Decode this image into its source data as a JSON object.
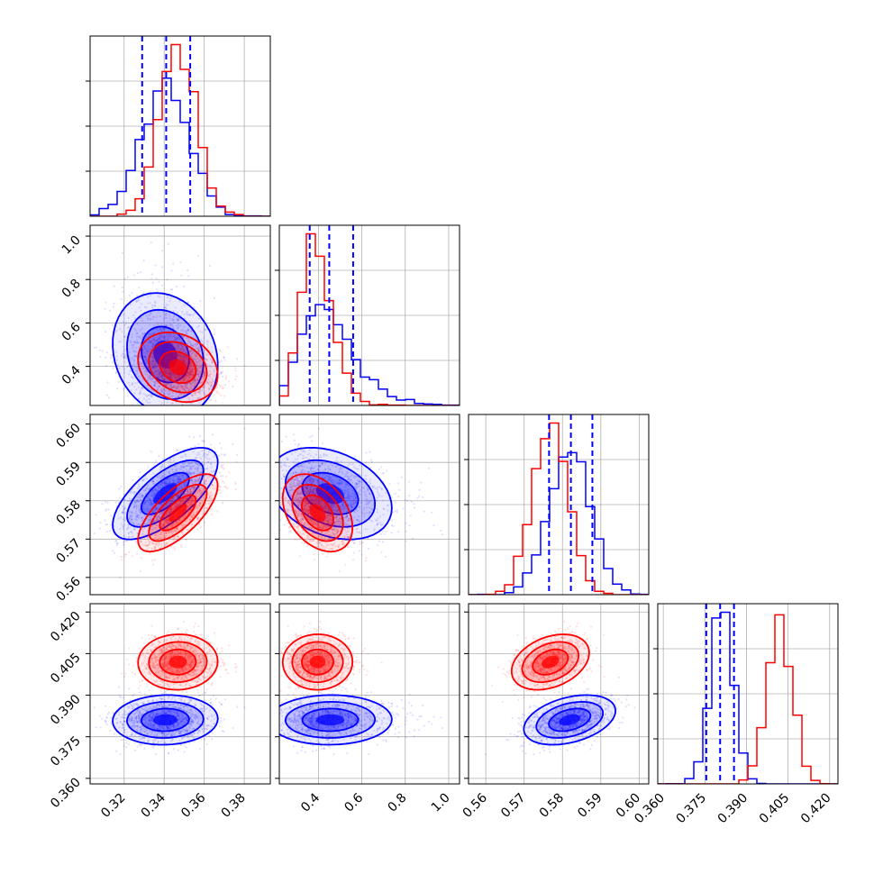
{
  "chart_data": {
    "type": "scatter",
    "layout": "corner",
    "grid": true,
    "colors": {
      "blue": "#0000ff",
      "red": "#ff0000"
    },
    "series": [
      {
        "color": "#0000ff",
        "quantiles": {
          "p0": [
            0.329,
            0.341,
            0.353
          ],
          "p1": [
            0.36,
            0.45,
            0.56
          ],
          "p2": [
            0.5765,
            0.5822,
            0.5878
          ],
          "p3": [
            0.3755,
            0.3805,
            0.3855
          ]
        },
        "centers": {
          "p0": 0.341,
          "p1": 0.44,
          "p2": 0.582,
          "p3": 0.381
        },
        "spreads": {
          "p0": 0.012,
          "p1": 0.09,
          "p2": 0.0055,
          "p3": 0.004
        }
      },
      {
        "color": "#ff0000",
        "centers": {
          "p0": 0.347,
          "p1": 0.39,
          "p2": 0.577,
          "p3": 0.402
        },
        "spreads": {
          "p0": 0.009,
          "p1": 0.045,
          "p2": 0.0045,
          "p3": 0.0045
        }
      }
    ],
    "parameters": [
      {
        "id": "p0",
        "range": [
          0.303,
          0.393
        ],
        "ticks": [
          0.32,
          0.34,
          0.36,
          0.38
        ],
        "tick_labels": [
          "0.32",
          "0.34",
          "0.36",
          "0.38"
        ]
      },
      {
        "id": "p1",
        "range": [
          0.22,
          1.05
        ],
        "ticks": [
          0.4,
          0.6,
          0.8,
          1.0
        ],
        "tick_labels": [
          "0.4",
          "0.6",
          "0.8",
          "1.0"
        ]
      },
      {
        "id": "p2",
        "range": [
          0.5555,
          0.6025
        ],
        "ticks": [
          0.56,
          0.57,
          0.58,
          0.59,
          0.6
        ],
        "tick_labels": [
          "0.56",
          "0.57",
          "0.58",
          "0.59",
          "0.60"
        ]
      },
      {
        "id": "p3",
        "range": [
          0.358,
          0.423
        ],
        "ticks": [
          0.36,
          0.375,
          0.39,
          0.405,
          0.42
        ],
        "tick_labels": [
          "0.360",
          "0.375",
          "0.390",
          "0.405",
          "0.420"
        ]
      }
    ]
  }
}
